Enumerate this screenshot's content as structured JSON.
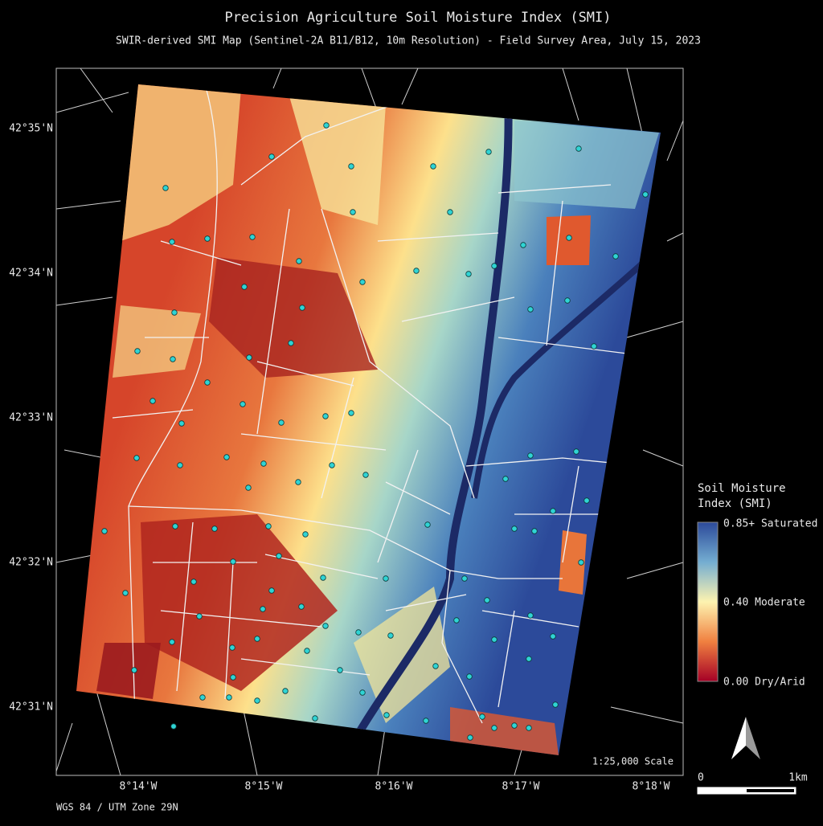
{
  "header": {
    "title": "Precision Agriculture Soil Moisture Index (SMI)",
    "subtitle": "SWIR-derived SMI Map (Sentinel-2A B11/B12, 10m Resolution) - Field Survey Area, July 15, 2023"
  },
  "axes": {
    "lat_labels": [
      "42°35'N",
      "42°34'N",
      "42°33'N",
      "42°32'N",
      "42°31'N"
    ],
    "lon_labels": [
      "8°14'W",
      "8°15'W",
      "8°16'W",
      "8°17'W",
      "8°18'W"
    ]
  },
  "legend": {
    "title_lines": [
      "Soil Moisture",
      "Index (SMI)"
    ],
    "labels": [
      "0.85+ Saturated",
      "0.40 Moderate",
      "0.00 Dry/Arid"
    ]
  },
  "scale": {
    "text": "1:25,000 Scale",
    "bar_start": "0",
    "bar_end": "1km"
  },
  "crs": "WGS 84 / UTM Zone 29N"
}
